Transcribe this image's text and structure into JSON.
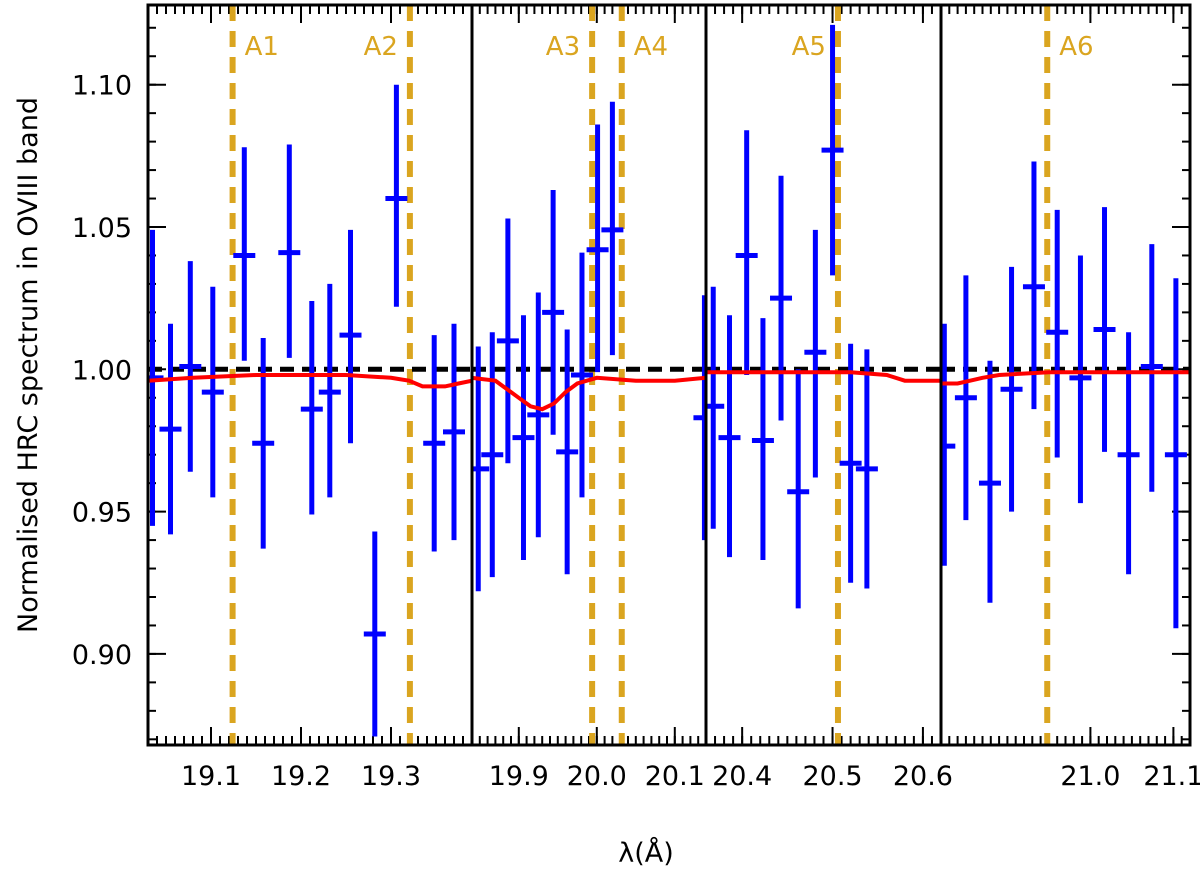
{
  "chart_data": {
    "type": "scatter",
    "title": "",
    "ylabel": "Normalised HRC spectrum in OVIII band",
    "xlabel": "λ(Å)",
    "ylim": [
      0.868,
      1.128
    ],
    "yticks": [
      0.9,
      0.95,
      1.0,
      1.05,
      1.1
    ],
    "ytick_labels": [
      "0.90",
      "0.95",
      "1.00",
      "1.05",
      "1.10"
    ],
    "reference_line": {
      "y": 1.0,
      "style": "dashed",
      "color": "#000000"
    },
    "colors": {
      "data": "#0000FF",
      "model": "#FF0000",
      "absorption": "#DAA520",
      "frame": "#000000"
    },
    "panels": [
      {
        "xlim": [
          19.03,
          19.39
        ],
        "xticks": [
          19.1,
          19.2,
          19.3
        ],
        "xtick_labels": [
          "19.1",
          "19.2",
          "19.3"
        ],
        "absorption_lines": [
          {
            "label": "A1",
            "x": 19.124
          },
          {
            "label": "A2",
            "x": 19.321
          }
        ],
        "points": [
          {
            "x": 19.035,
            "y": 0.997,
            "lo": 0.945,
            "hi": 1.049
          },
          {
            "x": 19.055,
            "y": 0.979,
            "lo": 0.942,
            "hi": 1.016
          },
          {
            "x": 19.077,
            "y": 1.001,
            "lo": 0.964,
            "hi": 1.038
          },
          {
            "x": 19.102,
            "y": 0.992,
            "lo": 0.955,
            "hi": 1.029
          },
          {
            "x": 19.137,
            "y": 1.04,
            "lo": 1.003,
            "hi": 1.078
          },
          {
            "x": 19.158,
            "y": 0.974,
            "lo": 0.937,
            "hi": 1.011
          },
          {
            "x": 19.187,
            "y": 1.041,
            "lo": 1.004,
            "hi": 1.079
          },
          {
            "x": 19.212,
            "y": 0.986,
            "lo": 0.949,
            "hi": 1.024
          },
          {
            "x": 19.232,
            "y": 0.992,
            "lo": 0.955,
            "hi": 1.03
          },
          {
            "x": 19.255,
            "y": 1.012,
            "lo": 0.974,
            "hi": 1.049
          },
          {
            "x": 19.282,
            "y": 0.907,
            "lo": 0.871,
            "hi": 0.943
          },
          {
            "x": 19.306,
            "y": 1.06,
            "lo": 1.022,
            "hi": 1.1
          },
          {
            "x": 19.348,
            "y": 0.974,
            "lo": 0.936,
            "hi": 1.012
          },
          {
            "x": 19.37,
            "y": 0.978,
            "lo": 0.94,
            "hi": 1.016
          }
        ],
        "model": [
          {
            "x": 19.03,
            "y": 0.996
          },
          {
            "x": 19.08,
            "y": 0.997
          },
          {
            "x": 19.15,
            "y": 0.998
          },
          {
            "x": 19.25,
            "y": 0.998
          },
          {
            "x": 19.3,
            "y": 0.997
          },
          {
            "x": 19.32,
            "y": 0.996
          },
          {
            "x": 19.335,
            "y": 0.994
          },
          {
            "x": 19.36,
            "y": 0.994
          },
          {
            "x": 19.375,
            "y": 0.995
          },
          {
            "x": 19.39,
            "y": 0.996
          }
        ]
      },
      {
        "xlim": [
          19.84,
          20.14
        ],
        "xticks": [
          19.9,
          20.0,
          20.1
        ],
        "xtick_labels": [
          "19.9",
          "20.0",
          "20.1"
        ],
        "absorption_lines": [
          {
            "label": "A3",
            "x": 19.994
          },
          {
            "label": "A4",
            "x": 20.032
          }
        ],
        "points": [
          {
            "x": 19.848,
            "y": 0.965,
            "lo": 0.922,
            "hi": 1.008
          },
          {
            "x": 19.866,
            "y": 0.97,
            "lo": 0.927,
            "hi": 1.013
          },
          {
            "x": 19.886,
            "y": 1.01,
            "lo": 0.967,
            "hi": 1.053
          },
          {
            "x": 19.906,
            "y": 0.976,
            "lo": 0.933,
            "hi": 1.019
          },
          {
            "x": 19.925,
            "y": 0.984,
            "lo": 0.941,
            "hi": 1.027
          },
          {
            "x": 19.944,
            "y": 1.02,
            "lo": 0.977,
            "hi": 1.063
          },
          {
            "x": 19.962,
            "y": 0.971,
            "lo": 0.928,
            "hi": 1.014
          },
          {
            "x": 19.981,
            "y": 0.998,
            "lo": 0.955,
            "hi": 1.041
          },
          {
            "x": 20.001,
            "y": 1.042,
            "lo": 0.999,
            "hi": 1.086
          },
          {
            "x": 20.02,
            "y": 1.049,
            "lo": 1.005,
            "hi": 1.094
          },
          {
            "x": 20.138,
            "y": 0.983,
            "lo": 0.94,
            "hi": 1.026
          }
        ],
        "model": [
          {
            "x": 19.84,
            "y": 0.997
          },
          {
            "x": 19.87,
            "y": 0.996
          },
          {
            "x": 19.885,
            "y": 0.993
          },
          {
            "x": 19.9,
            "y": 0.99
          },
          {
            "x": 19.915,
            "y": 0.987
          },
          {
            "x": 19.93,
            "y": 0.986
          },
          {
            "x": 19.945,
            "y": 0.988
          },
          {
            "x": 19.96,
            "y": 0.992
          },
          {
            "x": 19.975,
            "y": 0.995
          },
          {
            "x": 20.0,
            "y": 0.997
          },
          {
            "x": 20.05,
            "y": 0.996
          },
          {
            "x": 20.1,
            "y": 0.996
          },
          {
            "x": 20.14,
            "y": 0.997
          }
        ]
      },
      {
        "xlim": [
          20.36,
          20.62
        ],
        "xticks": [
          20.4,
          20.5,
          20.6
        ],
        "xtick_labels": [
          "20.4",
          "20.5",
          "20.6"
        ],
        "absorption_lines": [
          {
            "label": "A5",
            "x": 20.506
          }
        ],
        "points": [
          {
            "x": 20.368,
            "y": 0.987,
            "lo": 0.944,
            "hi": 1.029
          },
          {
            "x": 20.386,
            "y": 0.976,
            "lo": 0.934,
            "hi": 1.019
          },
          {
            "x": 20.405,
            "y": 1.04,
            "lo": 0.998,
            "hi": 1.084
          },
          {
            "x": 20.423,
            "y": 0.975,
            "lo": 0.933,
            "hi": 1.018
          },
          {
            "x": 20.443,
            "y": 1.025,
            "lo": 0.982,
            "hi": 1.068
          },
          {
            "x": 20.462,
            "y": 0.957,
            "lo": 0.916,
            "hi": 1.0
          },
          {
            "x": 20.481,
            "y": 1.006,
            "lo": 0.962,
            "hi": 1.049
          },
          {
            "x": 20.5,
            "y": 1.077,
            "lo": 1.033,
            "hi": 1.121
          },
          {
            "x": 20.52,
            "y": 0.967,
            "lo": 0.925,
            "hi": 1.009
          },
          {
            "x": 20.538,
            "y": 0.965,
            "lo": 0.923,
            "hi": 1.007
          }
        ],
        "model": [
          {
            "x": 20.36,
            "y": 0.999
          },
          {
            "x": 20.45,
            "y": 0.999
          },
          {
            "x": 20.52,
            "y": 0.999
          },
          {
            "x": 20.56,
            "y": 0.998
          },
          {
            "x": 20.58,
            "y": 0.996
          },
          {
            "x": 20.62,
            "y": 0.996
          }
        ]
      },
      {
        "xlim": [
          20.82,
          21.12
        ],
        "xticks": [
          21.0,
          21.1
        ],
        "xtick_labels": [
          "21.0",
          "21.1"
        ],
        "absorption_lines": [
          {
            "label": "A6",
            "x": 20.948
          }
        ],
        "points": [
          {
            "x": 20.824,
            "y": 0.973,
            "lo": 0.931,
            "hi": 1.016
          },
          {
            "x": 20.85,
            "y": 0.99,
            "lo": 0.947,
            "hi": 1.033
          },
          {
            "x": 20.879,
            "y": 0.96,
            "lo": 0.918,
            "hi": 1.003
          },
          {
            "x": 20.905,
            "y": 0.993,
            "lo": 0.95,
            "hi": 1.036
          },
          {
            "x": 20.932,
            "y": 1.029,
            "lo": 0.986,
            "hi": 1.073
          },
          {
            "x": 20.96,
            "y": 1.013,
            "lo": 0.969,
            "hi": 1.056
          },
          {
            "x": 20.988,
            "y": 0.997,
            "lo": 0.953,
            "hi": 1.04
          },
          {
            "x": 21.017,
            "y": 1.014,
            "lo": 0.971,
            "hi": 1.057
          },
          {
            "x": 21.046,
            "y": 0.97,
            "lo": 0.928,
            "hi": 1.013
          },
          {
            "x": 21.074,
            "y": 1.001,
            "lo": 0.957,
            "hi": 1.044
          },
          {
            "x": 21.103,
            "y": 0.97,
            "lo": 0.909,
            "hi": 1.032
          }
        ],
        "model": [
          {
            "x": 20.82,
            "y": 0.995
          },
          {
            "x": 20.84,
            "y": 0.995
          },
          {
            "x": 20.855,
            "y": 0.996
          },
          {
            "x": 20.87,
            "y": 0.997
          },
          {
            "x": 20.89,
            "y": 0.998
          },
          {
            "x": 20.95,
            "y": 0.999
          },
          {
            "x": 21.12,
            "y": 0.999
          }
        ]
      }
    ]
  }
}
